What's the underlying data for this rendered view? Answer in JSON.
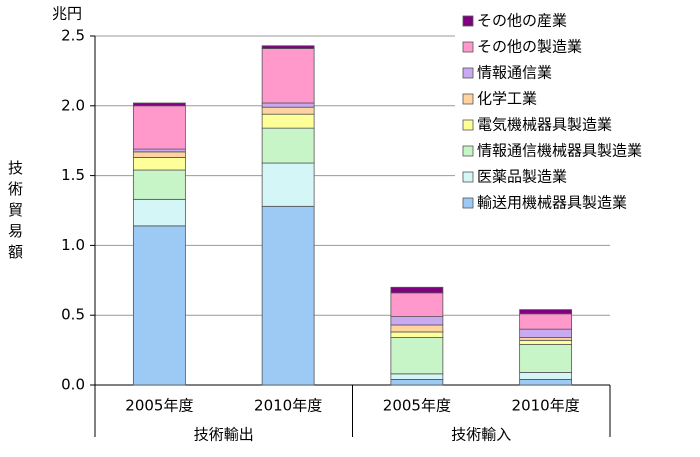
{
  "chart_data": {
    "type": "stacked_bar",
    "y_label": "技術貿易額",
    "unit": "兆円",
    "categories": [
      "2005年度",
      "2010年度",
      "2005年度",
      "2010年度"
    ],
    "groups": [
      "技術輸出",
      "技術輸入"
    ],
    "series": [
      {
        "name": "輸送用機械器具製造業",
        "color": "#9ccaf4",
        "values": [
          1.14,
          1.28,
          0.04,
          0.04
        ]
      },
      {
        "name": "医薬品製造業",
        "color": "#d4f6f6",
        "values": [
          0.19,
          0.31,
          0.04,
          0.05
        ]
      },
      {
        "name": "情報通信機械器具製造業",
        "color": "#c8f5c8",
        "values": [
          0.21,
          0.25,
          0.26,
          0.2
        ]
      },
      {
        "name": "電気機械器具製造業",
        "color": "#ffff99",
        "values": [
          0.09,
          0.1,
          0.04,
          0.03
        ]
      },
      {
        "name": "化学工業",
        "color": "#ffd4a0",
        "values": [
          0.04,
          0.05,
          0.05,
          0.02
        ]
      },
      {
        "name": "情報通信業",
        "color": "#c9a9f1",
        "values": [
          0.02,
          0.03,
          0.06,
          0.06
        ]
      },
      {
        "name": "その他の製造業",
        "color": "#ff99cc",
        "values": [
          0.31,
          0.39,
          0.17,
          0.11
        ]
      },
      {
        "name": "その他の産業",
        "color": "#800080",
        "values": [
          0.02,
          0.02,
          0.04,
          0.03
        ]
      }
    ],
    "ylim": [
      0,
      2.5
    ],
    "yticks": [
      {
        "value": 0,
        "label": "0.0"
      },
      0.5,
      {
        "value": 1,
        "label": "1.0"
      },
      1.5,
      {
        "value": 2,
        "label": "2.0"
      },
      2.5
    ],
    "grid": true,
    "legend": "upper right"
  }
}
